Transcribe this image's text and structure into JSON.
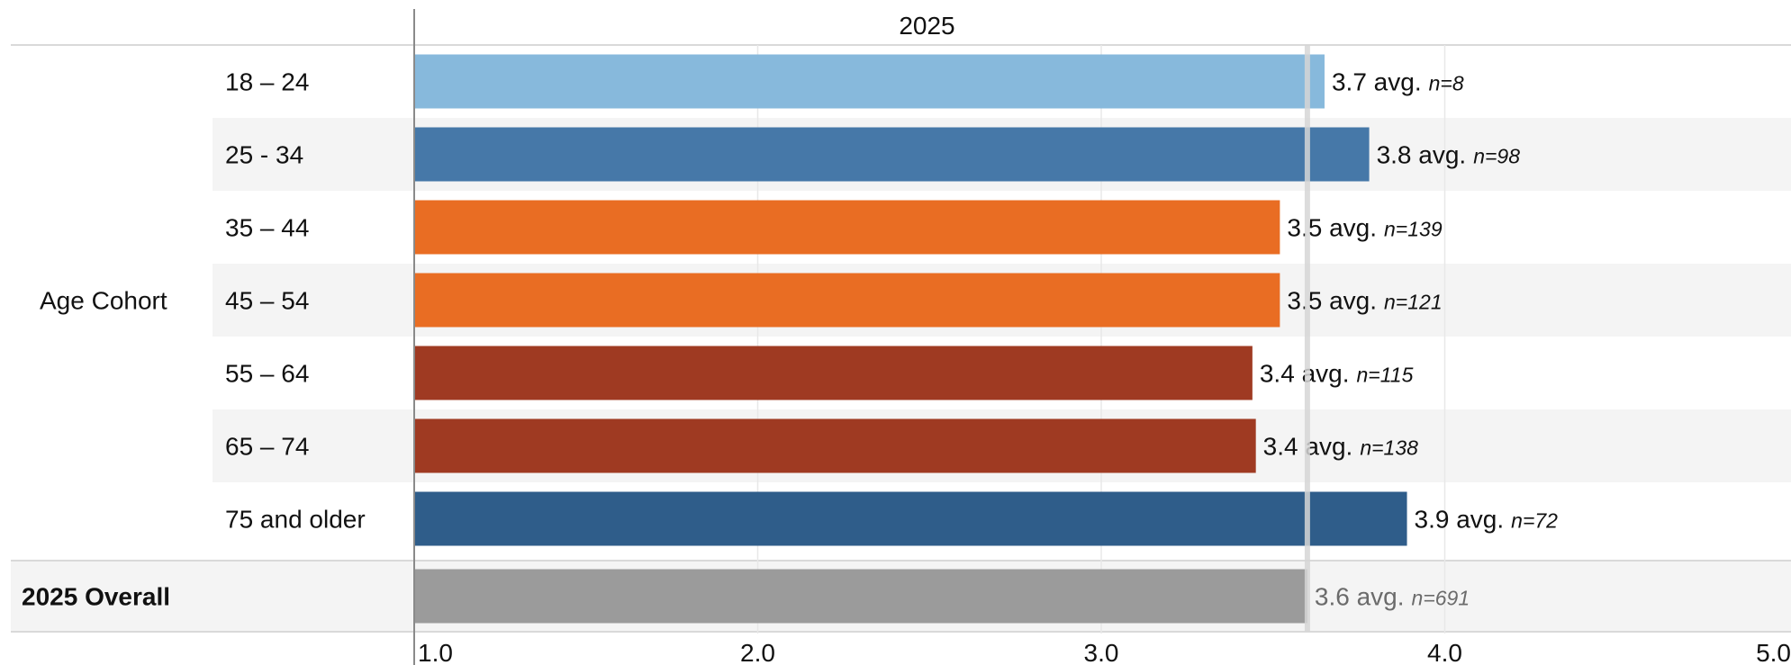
{
  "chart_data": {
    "type": "bar",
    "orientation": "horizontal",
    "column_header": "2025",
    "group_label": "Age Cohort",
    "categories": [
      "18 – 24",
      "25 - 34",
      "35 – 44",
      "45 – 54",
      "55 – 64",
      "65 – 74",
      "75 and older"
    ],
    "values": [
      3.65,
      3.78,
      3.52,
      3.52,
      3.44,
      3.45,
      3.89
    ],
    "value_labels": [
      "3.7 avg.",
      "3.8 avg.",
      "3.5 avg.",
      "3.5 avg.",
      "3.4 avg.",
      "3.4 avg.",
      "3.9 avg."
    ],
    "n_labels": [
      "n=8",
      "n=98",
      "n=139",
      "n=121",
      "n=115",
      "n=138",
      "n=72"
    ],
    "bar_colors": [
      "#87b9dc",
      "#4678a8",
      "#e96d23",
      "#e96d23",
      "#9f3a22",
      "#9f3a22",
      "#2f5d8a"
    ],
    "overall": {
      "label": "2025 Overall",
      "value": 3.6,
      "value_label": "3.6 avg.",
      "n_label": "n=691",
      "color": "#9b9b9b"
    },
    "reference_line": 3.6,
    "xlim": [
      1.0,
      5.0
    ],
    "xticks": [
      "1.0",
      "2.0",
      "3.0",
      "4.0",
      "5.0"
    ],
    "grid": true,
    "xlabel": "",
    "ylabel": ""
  },
  "colors": {
    "band": "#f4f4f4",
    "grid": "#e8e8e8",
    "ref_line": "#d6d6d6",
    "axis": "#8a8a8a",
    "separator": "#d9d9d9",
    "value_text": "#111111",
    "overall_text": "#6b6b6b"
  }
}
